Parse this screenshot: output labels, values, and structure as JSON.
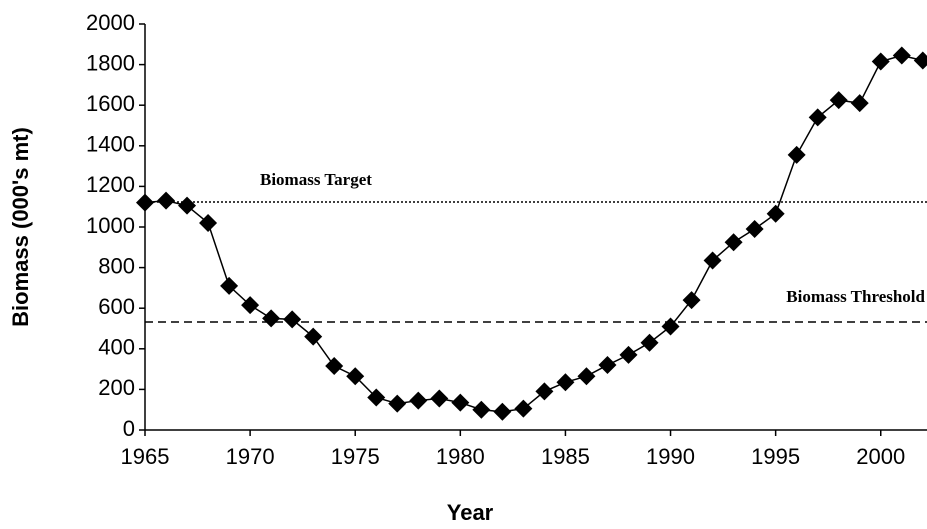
{
  "chart_data": {
    "type": "line",
    "x_label": "Year",
    "y_label": "Biomass (000's mt)",
    "x": [
      1965,
      1966,
      1967,
      1968,
      1969,
      1970,
      1971,
      1972,
      1973,
      1974,
      1975,
      1976,
      1977,
      1978,
      1979,
      1980,
      1981,
      1982,
      1983,
      1984,
      1985,
      1986,
      1987,
      1988,
      1989,
      1990,
      1991,
      1992,
      1993,
      1994,
      1995,
      1996,
      1997,
      1998,
      1999,
      2000,
      2001,
      2002
    ],
    "values": [
      1120,
      1130,
      1105,
      1020,
      710,
      615,
      550,
      545,
      460,
      315,
      265,
      160,
      130,
      145,
      155,
      135,
      100,
      90,
      105,
      190,
      235,
      265,
      320,
      370,
      430,
      510,
      640,
      835,
      925,
      990,
      1065,
      1355,
      1540,
      1625,
      1610,
      1815,
      1845,
      1820
    ],
    "color": "#000000",
    "marker": "diamond",
    "xlim": [
      1965,
      2002.2
    ],
    "ylim": [
      0,
      2000
    ],
    "xticks": [
      1965,
      1970,
      1975,
      1980,
      1985,
      1990,
      1995,
      2000
    ],
    "yticks": [
      0,
      200,
      400,
      600,
      800,
      1000,
      1200,
      1400,
      1600,
      1800,
      2000
    ],
    "reference_lines": [
      {
        "label": "Biomass Target",
        "value": 1123,
        "style": "dotted"
      },
      {
        "label": "Biomass Threshold",
        "value": 532,
        "style": "dashed"
      }
    ]
  }
}
